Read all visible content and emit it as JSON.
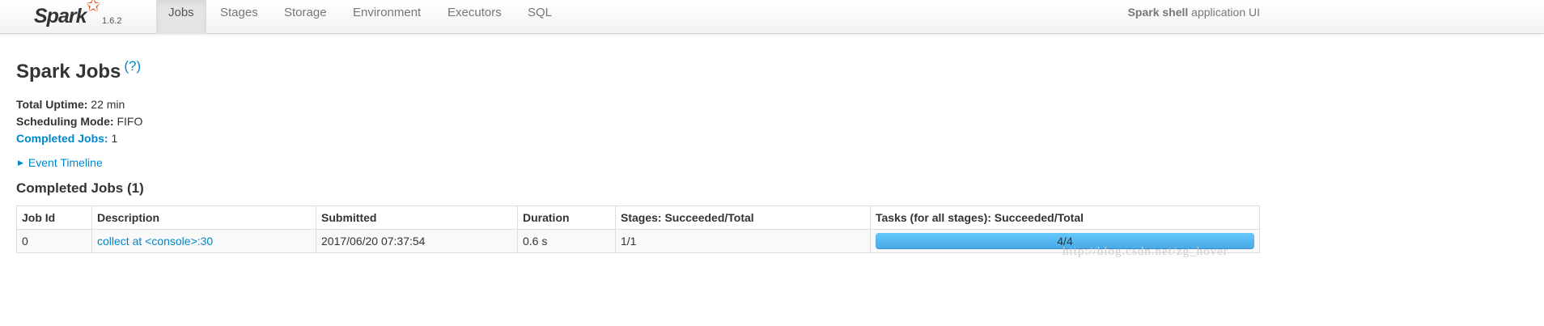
{
  "navbar": {
    "logo_text": "Spark",
    "version": "1.6.2",
    "tabs": [
      {
        "label": "Jobs",
        "active": true
      },
      {
        "label": "Stages"
      },
      {
        "label": "Storage"
      },
      {
        "label": "Environment"
      },
      {
        "label": "Executors"
      },
      {
        "label": "SQL"
      }
    ],
    "app_name_bold": "Spark shell",
    "app_name_suffix": "application UI"
  },
  "page": {
    "title": "Spark Jobs",
    "help": "(?)",
    "uptime_label": "Total Uptime:",
    "uptime_value": "22 min",
    "sched_label": "Scheduling Mode:",
    "sched_value": "FIFO",
    "completed_label": "Completed Jobs:",
    "completed_value": "1",
    "event_timeline": "Event Timeline",
    "section_title": "Completed Jobs (1)"
  },
  "table": {
    "headers": [
      "Job Id",
      "Description",
      "Submitted",
      "Duration",
      "Stages: Succeeded/Total",
      "Tasks (for all stages): Succeeded/Total"
    ],
    "rows": [
      {
        "job_id": "0",
        "description": "collect at <console>:30",
        "submitted": "2017/06/20 07:37:54",
        "duration": "0.6 s",
        "stages": "1/1",
        "tasks": "4/4",
        "tasks_progress": 1.0
      }
    ]
  },
  "watermark": "http://blog.csdn.net/zg_hover",
  "colors": {
    "link": "#0088cc",
    "progress": "#4aa9e8",
    "logo_star": "#e25a1c"
  }
}
